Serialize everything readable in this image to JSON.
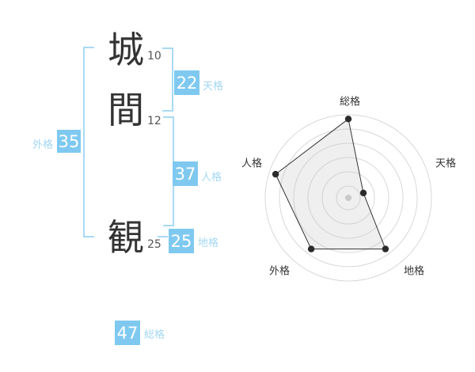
{
  "name_analysis": {
    "characters": [
      {
        "char": "城",
        "strokes": "10"
      },
      {
        "char": "間",
        "strokes": "12"
      },
      {
        "char": "観",
        "strokes": "25"
      }
    ],
    "scores": {
      "tenkaku": {
        "value": "22",
        "label": "天格"
      },
      "jinkaku": {
        "value": "37",
        "label": "人格"
      },
      "chikaku": {
        "value": "25",
        "label": "地格"
      },
      "gaikaku": {
        "value": "35",
        "label": "外格"
      },
      "soukaku": {
        "value": "47",
        "label": "総格"
      }
    },
    "colors": {
      "badge_bg": "#7fc9f0",
      "badge_text": "#ffffff",
      "label_text": "#a3d7f4",
      "bracket": "#a9d9f5"
    }
  },
  "chart_data": {
    "type": "radar",
    "axes": [
      "総格",
      "天格",
      "地格",
      "外格",
      "人格"
    ],
    "values": [
      95,
      19,
      76,
      76,
      92
    ],
    "max": 100,
    "grid_rings": 6,
    "grid_shape": "circle",
    "legend": false,
    "title": "",
    "colors": {
      "grid": "#d8d8d8",
      "polygon_fill": "#c0c0c0",
      "polygon_stroke": "#333333",
      "point": "#2b2b2b",
      "center_dot": "#c9c9c9",
      "label": "#333333"
    }
  }
}
